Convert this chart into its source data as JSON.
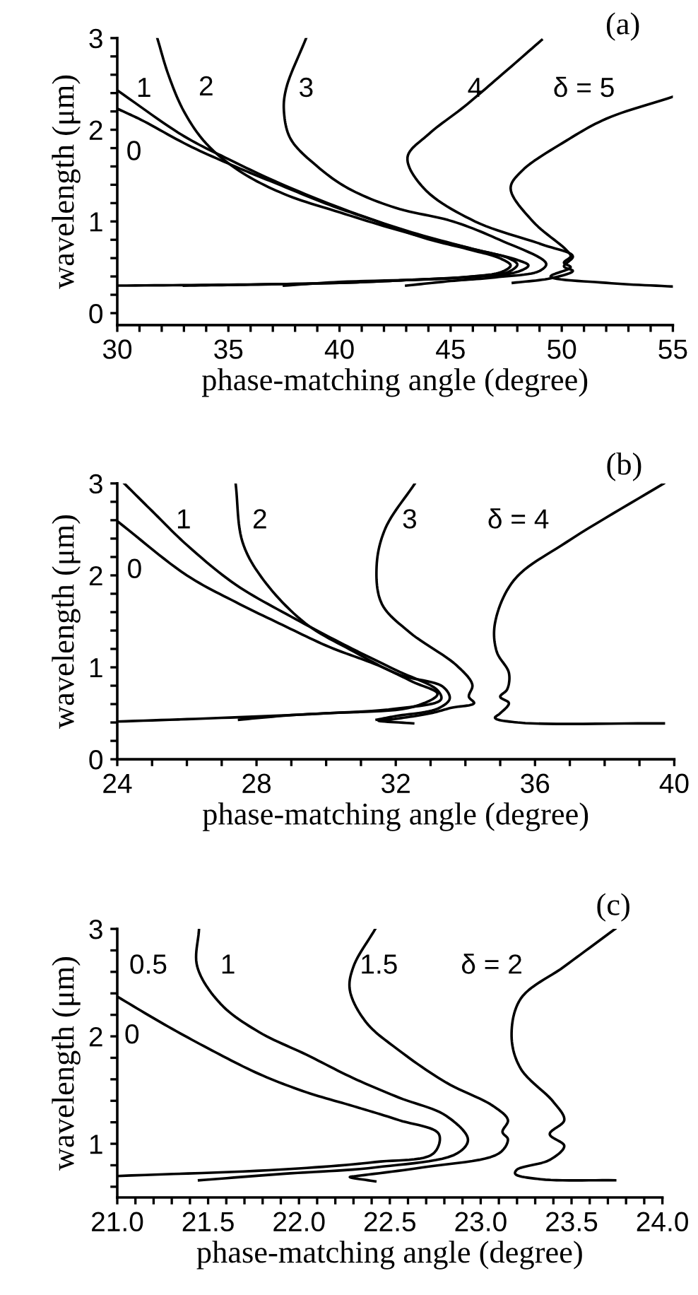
{
  "chart_data": [
    {
      "type": "line",
      "xlabel": "phase-matching angle (degree)",
      "ylabel": "wavelength (μm)",
      "xlim": [
        30,
        55
      ],
      "ylim": [
        -0.13,
        3
      ],
      "xticks": [
        30,
        {
          "value": 31,
          "label": null
        },
        {
          "value": 32,
          "label": null
        },
        {
          "value": 33,
          "label": null
        },
        {
          "value": 34,
          "label": null
        },
        35,
        {
          "value": 36,
          "label": null
        },
        {
          "value": 37,
          "label": null
        },
        {
          "value": 38,
          "label": null
        },
        {
          "value": 39,
          "label": null
        },
        40,
        {
          "value": 41,
          "label": null
        },
        {
          "value": 42,
          "label": null
        },
        {
          "value": 43,
          "label": null
        },
        {
          "value": 44,
          "label": null
        },
        45,
        {
          "value": 46,
          "label": null
        },
        {
          "value": 47,
          "label": null
        },
        {
          "value": 48,
          "label": null
        },
        {
          "value": 49,
          "label": null
        },
        50,
        {
          "value": 51,
          "label": null
        },
        {
          "value": 52,
          "label": null
        },
        {
          "value": 53,
          "label": null
        },
        {
          "value": 54,
          "label": null
        },
        55
      ],
      "yticks": [
        0,
        {
          "value": 0.2,
          "label": null
        },
        {
          "value": 0.4,
          "label": null
        },
        {
          "value": 0.6,
          "label": null
        },
        {
          "value": 0.8,
          "label": null
        },
        1,
        {
          "value": 1.2,
          "label": null
        },
        {
          "value": 1.4,
          "label": null
        },
        {
          "value": 1.6,
          "label": null
        },
        {
          "value": 1.8,
          "label": null
        },
        2,
        {
          "value": 2.2,
          "label": null
        },
        {
          "value": 2.4,
          "label": null
        },
        {
          "value": 2.6,
          "label": null
        },
        {
          "value": 2.8,
          "label": null
        },
        3
      ],
      "series": [
        {
          "color": "#000000",
          "x": [
            30,
            31.06,
            33.2,
            35.3,
            37.4,
            39.55,
            41.7,
            43.8,
            45.9,
            47.2,
            47.7,
            47.3,
            46,
            43,
            40,
            35,
            30
          ],
          "values": [
            2.23,
            2.11,
            1.83,
            1.6,
            1.39,
            1.18,
            1.0,
            0.82,
            0.69,
            0.6,
            0.52,
            0.45,
            0.4,
            0.36,
            0.33,
            0.31,
            0.3
          ]
        },
        {
          "color": "#000000",
          "x": [
            30,
            33,
            35,
            37,
            40,
            43,
            46,
            47.6,
            48.0,
            47.6,
            46,
            43,
            40,
            36,
            33
          ],
          "values": [
            2.43,
            1.93,
            1.68,
            1.45,
            1.15,
            0.9,
            0.7,
            0.6,
            0.53,
            0.45,
            0.4,
            0.36,
            0.33,
            0.31,
            0.3
          ]
        },
        {
          "color": "#000000",
          "x": [
            31.8,
            32.3,
            33,
            34,
            35.5,
            37.5,
            40,
            43,
            46,
            48,
            48.5,
            48,
            45,
            40,
            37.5
          ],
          "values": [
            3.0,
            2.6,
            2.2,
            1.85,
            1.55,
            1.3,
            1.1,
            0.88,
            0.7,
            0.58,
            0.52,
            0.45,
            0.38,
            0.34,
            0.3
          ]
        },
        {
          "color": "#000000",
          "x": [
            38.5,
            37.6,
            37.5,
            37.8,
            39,
            40.4,
            42.5,
            45.1,
            47.2,
            49.3,
            49.0,
            47,
            45,
            43
          ],
          "values": [
            3.0,
            2.45,
            2.2,
            1.9,
            1.6,
            1.36,
            1.15,
            1.0,
            0.8,
            0.54,
            0.46,
            0.39,
            0.35,
            0.3
          ]
        },
        {
          "color": "#000000",
          "x": [
            49.1,
            47.3,
            45.6,
            44,
            43.06,
            43.8,
            46.1,
            49.1,
            50.5,
            50.1,
            50.5,
            49.5,
            47.8
          ],
          "values": [
            2.98,
            2.6,
            2.25,
            1.95,
            1.7,
            1.36,
            1.0,
            0.75,
            0.62,
            0.51,
            0.46,
            0.38,
            0.33
          ]
        },
        {
          "color": "#000000",
          "x": [
            55,
            52,
            50.2,
            48.2,
            47.7,
            48.7,
            50.2,
            50.4,
            50.1,
            50.4,
            49.5,
            52,
            55
          ],
          "values": [
            2.36,
            2.12,
            1.88,
            1.55,
            1.36,
            1.0,
            0.69,
            0.62,
            0.55,
            0.5,
            0.4,
            0.33,
            0.29
          ]
        }
      ],
      "annotations": [
        "(a)",
        "0",
        "1",
        "2",
        "3",
        "4",
        "δ = 5"
      ]
    },
    {
      "type": "line",
      "xlabel": "phase-matching angle (degree)",
      "ylabel": "wavelength (μm)",
      "xlim": [
        24,
        40
      ],
      "ylim": [
        0,
        3
      ],
      "xticks": [
        24,
        {
          "value": 25,
          "label": null
        },
        {
          "value": 26,
          "label": null
        },
        {
          "value": 27,
          "label": null
        },
        28,
        {
          "value": 29,
          "label": null
        },
        {
          "value": 30,
          "label": null
        },
        {
          "value": 31,
          "label": null
        },
        32,
        {
          "value": 33,
          "label": null
        },
        {
          "value": 34,
          "label": null
        },
        {
          "value": 35,
          "label": null
        },
        36,
        {
          "value": 37,
          "label": null
        },
        {
          "value": 38,
          "label": null
        },
        {
          "value": 39,
          "label": null
        },
        40
      ],
      "yticks": [
        0,
        {
          "value": 0.2,
          "label": null
        },
        {
          "value": 0.4,
          "label": null
        },
        {
          "value": 0.6,
          "label": null
        },
        {
          "value": 0.8,
          "label": null
        },
        1,
        {
          "value": 1.2,
          "label": null
        },
        {
          "value": 1.4,
          "label": null
        },
        {
          "value": 1.6,
          "label": null
        },
        {
          "value": 1.8,
          "label": null
        },
        2,
        {
          "value": 2.2,
          "label": null
        },
        {
          "value": 2.4,
          "label": null
        },
        {
          "value": 2.6,
          "label": null
        },
        {
          "value": 2.8,
          "label": null
        },
        3
      ],
      "series": [
        {
          "color": "#000000",
          "x": [
            24,
            26.0,
            27.4,
            28.75,
            30.1,
            31.5,
            32.5,
            33.2,
            32.5,
            30,
            27,
            24
          ],
          "values": [
            2.59,
            2.0,
            1.71,
            1.46,
            1.22,
            1.02,
            0.84,
            0.71,
            0.57,
            0.5,
            0.45,
            0.41
          ]
        },
        {
          "color": "#000000",
          "x": [
            24.2,
            25,
            26,
            27.4,
            29,
            30.5,
            32,
            33.2,
            33.3,
            32,
            29,
            27.5
          ],
          "values": [
            3.0,
            2.7,
            2.33,
            1.9,
            1.55,
            1.25,
            0.97,
            0.75,
            0.65,
            0.55,
            0.48,
            0.43
          ]
        },
        {
          "color": "#000000",
          "x": [
            27.4,
            27.6,
            28.2,
            29.4,
            30.8,
            32.1,
            33.35,
            33.55,
            33.2,
            32,
            31.45
          ],
          "values": [
            3.0,
            2.36,
            1.95,
            1.48,
            1.17,
            0.92,
            0.79,
            0.66,
            0.55,
            0.47,
            0.43
          ]
        },
        {
          "color": "#000000",
          "x": [
            32.55,
            31.7,
            31.45,
            31.6,
            32.4,
            33.75,
            34.2,
            34.1,
            34.25,
            33.6,
            33,
            32,
            31.5,
            32.5
          ],
          "values": [
            3.0,
            2.51,
            2.1,
            1.69,
            1.38,
            1.02,
            0.81,
            0.68,
            0.61,
            0.56,
            0.5,
            0.44,
            0.42,
            0.39
          ]
        },
        {
          "color": "#000000",
          "x": [
            39.7,
            36.9,
            35.4,
            34.85,
            34.9,
            35.25,
            35.2,
            35.0,
            35.25,
            35.0,
            34.85,
            35.5,
            39.7
          ],
          "values": [
            3.0,
            2.36,
            1.95,
            1.48,
            1.17,
            0.94,
            0.76,
            0.68,
            0.61,
            0.5,
            0.45,
            0.4,
            0.39
          ]
        }
      ],
      "annotations": [
        "(b)",
        "0",
        "1",
        "2",
        "3",
        "δ = 4"
      ]
    },
    {
      "type": "line",
      "xlabel": "phase-matching angle (degree)",
      "ylabel": "wavelength (μm)",
      "xlim": [
        21.0,
        24.0
      ],
      "ylim": [
        0.5,
        3
      ],
      "xticks": [
        {
          "value": 21.0,
          "label": "21.0"
        },
        {
          "value": 21.1,
          "label": null
        },
        {
          "value": 21.2,
          "label": null
        },
        {
          "value": 21.3,
          "label": null
        },
        {
          "value": 21.4,
          "label": null
        },
        21.5,
        {
          "value": 21.6,
          "label": null
        },
        {
          "value": 21.7,
          "label": null
        },
        {
          "value": 21.8,
          "label": null
        },
        {
          "value": 21.9,
          "label": null
        },
        {
          "value": 22.0,
          "label": "22.0"
        },
        {
          "value": 22.1,
          "label": null
        },
        {
          "value": 22.2,
          "label": null
        },
        {
          "value": 22.3,
          "label": null
        },
        {
          "value": 22.4,
          "label": null
        },
        22.5,
        {
          "value": 22.6,
          "label": null
        },
        {
          "value": 22.7,
          "label": null
        },
        {
          "value": 22.8,
          "label": null
        },
        {
          "value": 22.9,
          "label": null
        },
        {
          "value": 23.0,
          "label": "23.0"
        },
        {
          "value": 23.1,
          "label": null
        },
        {
          "value": 23.2,
          "label": null
        },
        {
          "value": 23.3,
          "label": null
        },
        {
          "value": 23.4,
          "label": null
        },
        23.5,
        {
          "value": 23.6,
          "label": null
        },
        {
          "value": 23.7,
          "label": null
        },
        {
          "value": 23.8,
          "label": null
        },
        {
          "value": 23.9,
          "label": null
        },
        {
          "value": 24.0,
          "label": "24.0"
        }
      ],
      "yticks": [
        {
          "value": 0.6,
          "label": null
        },
        {
          "value": 0.8,
          "label": null
        },
        1,
        {
          "value": 1.2,
          "label": null
        },
        {
          "value": 1.4,
          "label": null
        },
        {
          "value": 1.6,
          "label": null
        },
        {
          "value": 1.8,
          "label": null
        },
        2,
        {
          "value": 2.2,
          "label": null
        },
        {
          "value": 2.4,
          "label": null
        },
        {
          "value": 2.6,
          "label": null
        },
        {
          "value": 2.8,
          "label": null
        },
        3
      ],
      "series": [
        {
          "color": "#000000",
          "x": [
            21.0,
            21.26,
            21.52,
            21.78,
            22.04,
            22.3,
            22.55,
            22.77,
            22.74,
            22.42,
            21.9,
            21.0
          ],
          "values": [
            2.37,
            2.11,
            1.87,
            1.65,
            1.48,
            1.35,
            1.22,
            1.09,
            0.91,
            0.83,
            0.76,
            0.7
          ]
        },
        {
          "color": "#000000",
          "x": [
            21.45,
            21.44,
            21.57,
            21.78,
            22.04,
            22.3,
            22.55,
            22.81,
            22.93,
            22.87,
            22.42,
            21.91,
            21.45
          ],
          "values": [
            3.0,
            2.65,
            2.3,
            2.04,
            1.83,
            1.61,
            1.43,
            1.26,
            1.04,
            0.91,
            0.78,
            0.72,
            0.66
          ]
        },
        {
          "color": "#000000",
          "x": [
            22.42,
            22.3,
            22.28,
            22.37,
            22.55,
            22.81,
            23.07,
            23.15,
            23.12,
            23.15,
            23.1,
            22.68,
            22.32,
            22.28,
            22.42
          ],
          "values": [
            3.0,
            2.65,
            2.43,
            2.13,
            1.87,
            1.57,
            1.35,
            1.22,
            1.11,
            1.04,
            0.91,
            0.78,
            0.7,
            0.69,
            0.65
          ]
        },
        {
          "color": "#000000",
          "x": [
            23.74,
            23.46,
            23.22,
            23.17,
            23.22,
            23.4,
            23.46,
            23.38,
            23.46,
            23.38,
            23.2,
            23.19,
            23.33,
            23.74
          ],
          "values": [
            3.0,
            2.65,
            2.35,
            2.0,
            1.7,
            1.39,
            1.22,
            1.09,
            0.98,
            0.85,
            0.76,
            0.72,
            0.67,
            0.66
          ]
        }
      ],
      "annotations": [
        "(c)",
        "0",
        "0.5",
        "1",
        "1.5",
        "δ = 2"
      ]
    }
  ]
}
